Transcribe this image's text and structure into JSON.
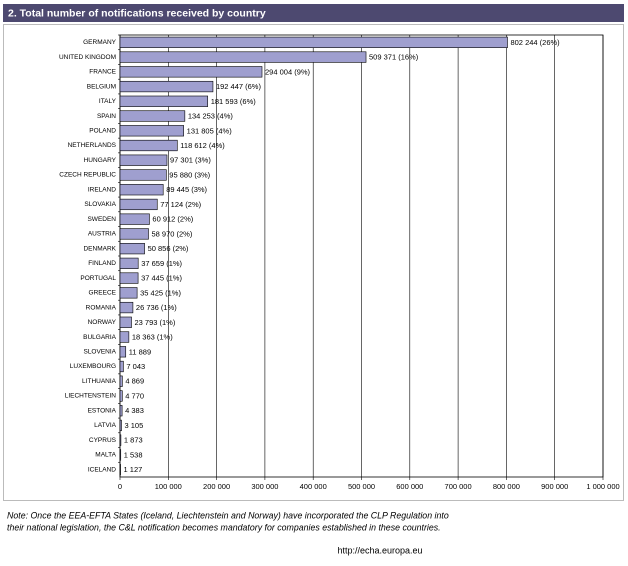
{
  "chart_data": {
    "type": "hbar",
    "title": "2. Total number of notifications received by country",
    "categories": [
      "GERMANY",
      "UNITED KINGDOM",
      "FRANCE",
      "BELGIUM",
      "ITALY",
      "SPAIN",
      "POLAND",
      "NETHERLANDS",
      "HUNGARY",
      "CZECH REPUBLIC",
      "IRELAND",
      "SLOVAKIA",
      "SWEDEN",
      "AUSTRIA",
      "DENMARK",
      "FINLAND",
      "PORTUGAL",
      "GREECE",
      "ROMANIA",
      "NORWAY",
      "BULGARIA",
      "SLOVENIA",
      "LUXEMBOURG",
      "LITHUANIA",
      "LIECHTENSTEIN",
      "ESTONIA",
      "LATVIA",
      "CYPRUS",
      "MALTA",
      "ICELAND"
    ],
    "values": [
      802244,
      509371,
      294004,
      192447,
      181593,
      134253,
      131805,
      118612,
      97301,
      95880,
      89445,
      77124,
      60912,
      58970,
      50856,
      37659,
      37445,
      35425,
      26736,
      23793,
      18363,
      11889,
      7043,
      4869,
      4770,
      4383,
      3105,
      1873,
      1538,
      1127
    ],
    "value_labels": [
      "802 244 (26%)",
      "509 371 (16%)",
      "294 004 (9%)",
      "192 447 (6%)",
      "181 593 (6%)",
      "134 253 (4%)",
      "131 805 (4%)",
      "118 612 (4%)",
      "97 301 (3%)",
      "95 880 (3%)",
      "89 445 (3%)",
      "77 124 (2%)",
      "60 912 (2%)",
      "58 970 (2%)",
      "50 856 (2%)",
      "37 659 (1%)",
      "37 445 (1%)",
      "35 425 (1%)",
      "26 736 (1%)",
      "23 793 (1%)",
      "18 363 (1%)",
      "11 889",
      "7 043",
      "4 869",
      "4 770",
      "4 383",
      "3 105",
      "1 873",
      "1 538",
      "1 127"
    ],
    "color": "#9f9fcf",
    "xlim": [
      0,
      1000000
    ],
    "xticks": [
      0,
      {
        "value": 100000,
        "label": "100 000"
      },
      {
        "value": 200000,
        "label": "200 000"
      },
      {
        "value": 300000,
        "label": "300 000"
      },
      {
        "value": 400000,
        "label": "400 000"
      },
      {
        "value": 500000,
        "label": "500 000"
      },
      {
        "value": 600000,
        "label": "600 000"
      },
      {
        "value": 700000,
        "label": "700 000"
      },
      {
        "value": 800000,
        "label": "800 000"
      },
      {
        "value": 900000,
        "label": "900 000"
      },
      {
        "value": 1000000,
        "label": "1 000 000"
      }
    ],
    "grid": true,
    "note": [
      "Note: Once the EEA-EFTA States (Iceland, Liechtenstein and Norway) have incorporated the CLP Regulation into",
      "their national legislation, the C&L notification becomes mandatory for companies established in these countries."
    ],
    "source": "http://echa.europa.eu"
  }
}
